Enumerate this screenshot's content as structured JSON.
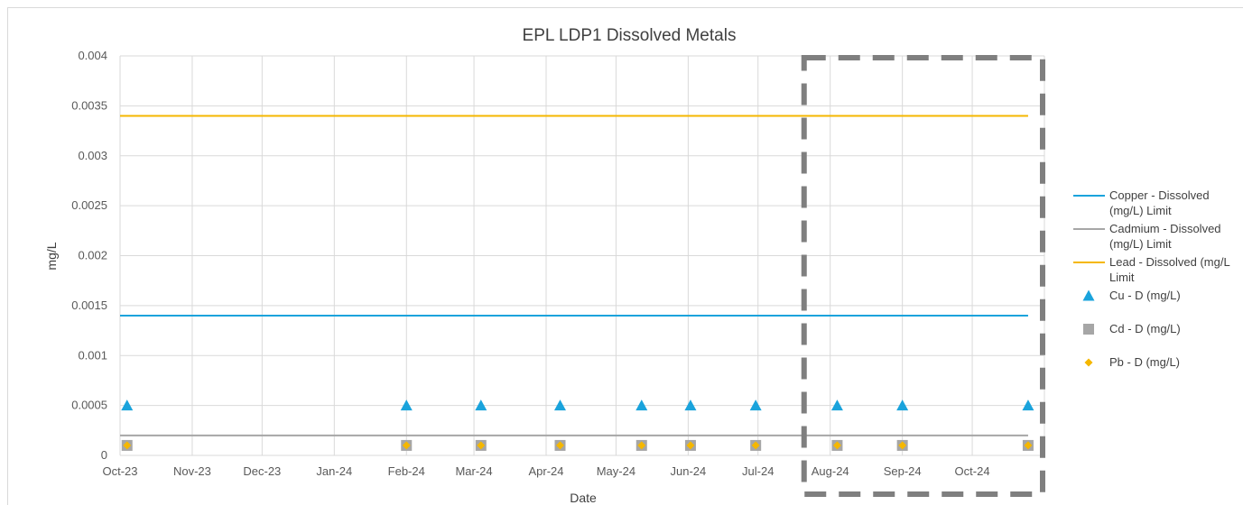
{
  "chart_data": {
    "type": "line",
    "title": "EPL LDP1 Dissolved Metals",
    "xlabel": "Date",
    "ylabel": "mg/L",
    "ylim": [
      0,
      0.004
    ],
    "y_ticks": [
      "0",
      "0.0005",
      "0.001",
      "0.0015",
      "0.002",
      "0.0025",
      "0.003",
      "0.0035",
      "0.004"
    ],
    "x_ticks": [
      "2023-10-01",
      "2023-11-01",
      "2023-12-01",
      "2024-01-01",
      "2024-02-01",
      "2024-03-01",
      "2024-04-01",
      "2024-05-01",
      "2024-06-01",
      "2024-07-01",
      "2024-08-01",
      "2024-09-01",
      "2024-10-01"
    ],
    "x_tick_labels": [
      "Oct-23",
      "Nov-23",
      "Dec-23",
      "Jan-24",
      "Feb-24",
      "Mar-24",
      "Apr-24",
      "May-24",
      "Jun-24",
      "Jul-24",
      "Aug-24",
      "Sep-24",
      "Oct-24"
    ],
    "xlim": [
      "2023-10-01",
      "2024-11-01"
    ],
    "grid": true,
    "legend_position": "right",
    "limit_lines": [
      {
        "name": "Copper - Dissolved (mg/L) Limit",
        "legend_lines": [
          "Copper - Dissolved",
          "(mg/L) Limit"
        ],
        "color": "#1aa3dc",
        "value": 0.0014,
        "x_start": "2023-10-01",
        "x_end": "2024-10-25"
      },
      {
        "name": "Cadmium - Dissolved (mg/L) Limit",
        "legend_lines": [
          "Cadmium - Dissolved",
          "(mg/L) Limit"
        ],
        "color": "#a6a6a6",
        "value": 0.0002,
        "x_start": "2023-10-01",
        "x_end": "2024-10-25"
      },
      {
        "name": "Lead - Dissolved (mg/L) Limit",
        "legend_lines": [
          "Lead - Dissolved (mg/L",
          "Limit"
        ],
        "color": "#f5b700",
        "value": 0.0034,
        "x_start": "2023-10-01",
        "x_end": "2024-10-25"
      }
    ],
    "x": [
      "2023-10-04",
      "2024-02-01",
      "2024-03-04",
      "2024-04-07",
      "2024-05-12",
      "2024-06-02",
      "2024-06-30",
      "2024-08-04",
      "2024-09-01",
      "2024-10-25"
    ],
    "series": [
      {
        "name": "Cu - D (mg/L)",
        "marker": "triangle",
        "color": "#1aa3dc",
        "values": [
          0.0005,
          0.0005,
          0.0005,
          0.0005,
          0.0005,
          0.0005,
          0.0005,
          0.0005,
          0.0005,
          0.0005
        ]
      },
      {
        "name": "Cd - D (mg/L)",
        "marker": "square",
        "color": "#a6a6a6",
        "values": [
          0.0001,
          0.0001,
          0.0001,
          0.0001,
          0.0001,
          0.0001,
          0.0001,
          0.0001,
          0.0001,
          0.0001
        ]
      },
      {
        "name": "Pb - D (mg/L)",
        "marker": "diamond",
        "color": "#f5b700",
        "values": [
          0.0001,
          0.0001,
          0.0001,
          0.0001,
          0.0001,
          0.0001,
          0.0001,
          0.0001,
          0.0001,
          0.0001
        ]
      }
    ],
    "annotations": [
      {
        "type": "dashed-box",
        "color": "#7f7f7f",
        "x_start": "2024-07-20",
        "x_end": "2024-11-01"
      }
    ]
  }
}
